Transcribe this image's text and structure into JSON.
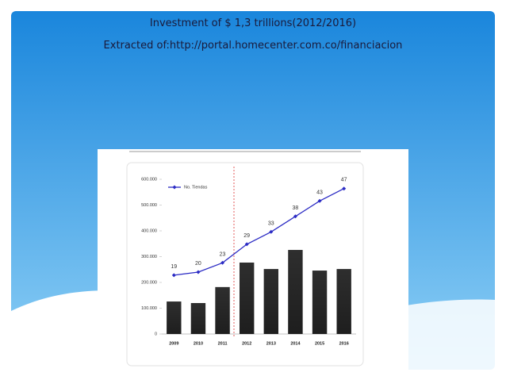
{
  "slide": {
    "title": "Investment of $ 1,3 trillions(2012/2016)",
    "subtitle": "Extracted of:http://portal.homecenter.com.co/financiacion"
  },
  "chart_data": {
    "type": "bar",
    "categories": [
      "2009",
      "2010",
      "2011",
      "2012",
      "2013",
      "2014",
      "2015",
      "2016"
    ],
    "series": [
      {
        "type": "bar",
        "color": "#2e2e2e",
        "values": [
          126000,
          120000,
          182000,
          277000,
          252000,
          326000,
          246000,
          252000
        ]
      },
      {
        "name": "No. Tiendas",
        "type": "line",
        "axis": "y2",
        "color": "#2b2bc4",
        "values": [
          19,
          20,
          23,
          29,
          33,
          38,
          43,
          47
        ]
      }
    ],
    "ylim": [
      0,
      600000
    ],
    "yticks": [
      0,
      {
        "value": 100000,
        "label": "100.000"
      },
      {
        "value": 200000,
        "label": "200.000"
      },
      {
        "value": 300000,
        "label": "300.000"
      },
      {
        "value": 400000,
        "label": "400.000"
      },
      {
        "value": 500000,
        "label": "500.000"
      },
      {
        "value": 600000,
        "label": "600.000"
      }
    ],
    "y2lim": [
      0,
      50
    ],
    "legend": "top-left"
  }
}
